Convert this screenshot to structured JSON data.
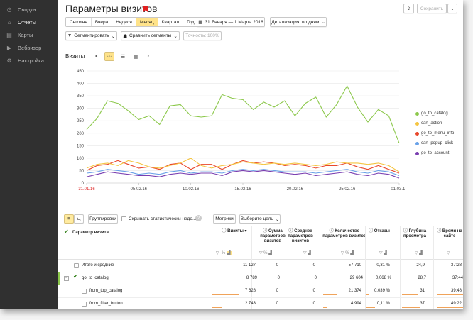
{
  "sidebar": {
    "items": [
      {
        "label": "Сводка",
        "icon": "dashboard-icon"
      },
      {
        "label": "Отчеты",
        "icon": "reports-icon"
      },
      {
        "label": "Карты",
        "icon": "maps-icon"
      },
      {
        "label": "Вебвизор",
        "icon": "play-icon"
      },
      {
        "label": "Настройка",
        "icon": "gear-icon"
      }
    ]
  },
  "header": {
    "title": "Параметры визитов",
    "save_label": "Сохранить"
  },
  "periods": [
    "Сегодня",
    "Вчера",
    "Неделя",
    "Месяц",
    "Квартал",
    "Год"
  ],
  "date_range": "31 Января — 1 Марта 2016",
  "detail": "Детализация: по дням",
  "segment_btn": "Сегментировать",
  "compare_btn": "Сравнить сегменты",
  "accuracy": "Точность: 100%",
  "chart": {
    "title": "Визиты"
  },
  "chart_data": {
    "type": "line",
    "ylim": [
      0,
      450
    ],
    "yticks": [
      0,
      50,
      100,
      150,
      200,
      250,
      300,
      350,
      400,
      450
    ],
    "x_labels": [
      "31.01.16",
      "05.02.16",
      "10.02.16",
      "15.02.16",
      "20.02.16",
      "25.02.16",
      "01.03.16"
    ],
    "x_label_index": [
      0,
      5,
      10,
      15,
      20,
      25,
      30
    ],
    "series": [
      {
        "name": "go_to_catalog",
        "color": "#8cc84b",
        "values": [
          215,
          260,
          330,
          320,
          290,
          255,
          270,
          235,
          310,
          315,
          270,
          265,
          270,
          355,
          340,
          335,
          295,
          325,
          305,
          330,
          270,
          320,
          345,
          265,
          315,
          390,
          305,
          245,
          295,
          270,
          160
        ]
      },
      {
        "name": "cart_action",
        "color": "#f5c542",
        "values": [
          60,
          75,
          80,
          70,
          90,
          80,
          65,
          60,
          70,
          80,
          100,
          70,
          60,
          70,
          75,
          85,
          80,
          75,
          80,
          75,
          80,
          75,
          70,
          75,
          85,
          80,
          80,
          75,
          80,
          70,
          45
        ]
      },
      {
        "name": "go_to_menu_info",
        "color": "#e8472b",
        "values": [
          50,
          70,
          75,
          90,
          75,
          60,
          65,
          55,
          75,
          80,
          55,
          75,
          75,
          55,
          75,
          90,
          80,
          85,
          80,
          70,
          75,
          70,
          60,
          70,
          70,
          80,
          65,
          55,
          70,
          55,
          40
        ]
      },
      {
        "name": "cart_popup_click",
        "color": "#6aa2e8",
        "values": [
          40,
          45,
          55,
          50,
          45,
          35,
          40,
          35,
          45,
          50,
          40,
          45,
          45,
          40,
          50,
          55,
          50,
          55,
          50,
          45,
          45,
          45,
          40,
          45,
          50,
          55,
          45,
          40,
          50,
          45,
          30
        ]
      },
      {
        "name": "go_to_account",
        "color": "#7a3fb0",
        "values": [
          25,
          35,
          45,
          40,
          35,
          30,
          30,
          25,
          35,
          40,
          35,
          40,
          40,
          30,
          45,
          50,
          45,
          50,
          45,
          40,
          35,
          40,
          30,
          35,
          40,
          45,
          35,
          30,
          40,
          35,
          20
        ]
      }
    ]
  },
  "toolbar2": {
    "group_btn": "Группировки",
    "hide_stats": "Скрывать статистически недо...",
    "metrics_btn": "Метрики",
    "goal_btn": "Выберите цель"
  },
  "columns": {
    "param": "Параметр визита",
    "visits": "Визиты",
    "sum": "Сумма параметров визитов",
    "avg": "Среднее параметров визитов",
    "count": "Количество параметров визитов",
    "bounces": "Отказы",
    "depth": "Глубина просмотра",
    "time": "Время на сайте"
  },
  "rows": [
    {
      "label": "Итого и средние",
      "visits": "11 127",
      "sum": "0",
      "avg": "0",
      "count": "57 710",
      "bounces": "0,31 %",
      "depth": "24,9",
      "time": "37:28"
    },
    {
      "label": "go_to_catalog",
      "visits": "8 789",
      "sum": "0",
      "avg": "0",
      "count": "29 604",
      "bounces": "0,068 %",
      "depth": "28,7",
      "time": "37:44"
    },
    {
      "label": "from_top_catalog",
      "visits": "7 628",
      "sum": "0",
      "avg": "0",
      "count": "21 374",
      "bounces": "0,039 %",
      "depth": "31",
      "time": "39:48"
    },
    {
      "label": "from_filter_button",
      "visits": "2 743",
      "sum": "0",
      "avg": "0",
      "count": "4 994",
      "bounces": "0,11 %",
      "depth": "37",
      "time": "49:22"
    }
  ]
}
